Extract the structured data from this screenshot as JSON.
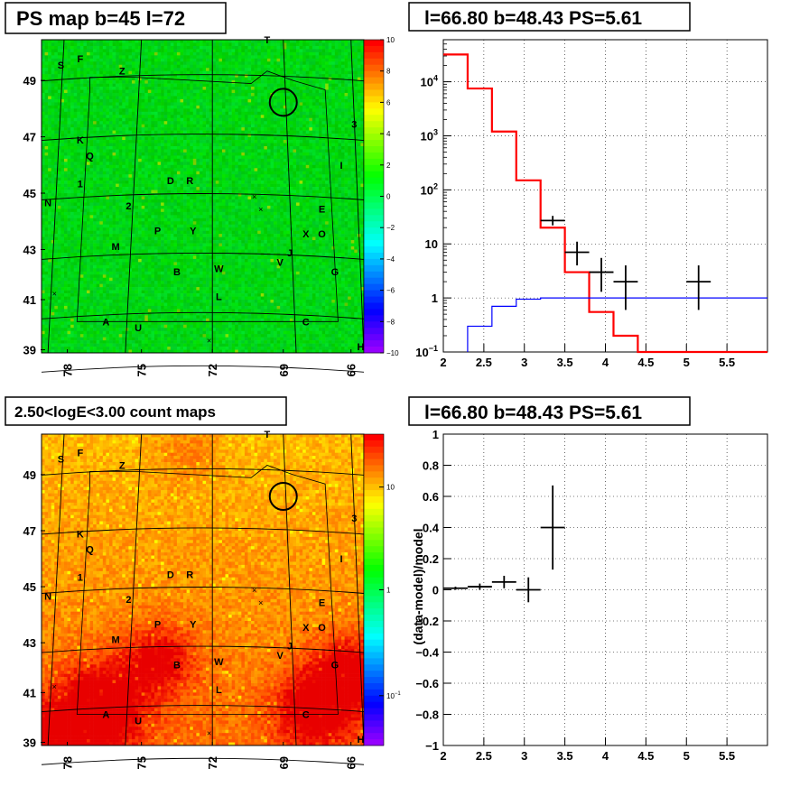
{
  "chart_data": [
    {
      "type": "heatmap",
      "title": "PS map b=45 l=72",
      "yticks": [
        "49",
        "47",
        "45",
        "43",
        "41",
        "39"
      ],
      "xticks": [
        "78",
        "75",
        "72",
        "69",
        "66"
      ],
      "palette_ticks": [
        "10",
        "8",
        "6",
        "4",
        "2",
        "0",
        "−2",
        "−4",
        "−6",
        "−8",
        "−10"
      ],
      "color_range": [
        -10,
        10
      ],
      "source_labels": [
        "T",
        "S",
        "F",
        "Z",
        "3",
        "K",
        "Q",
        "I",
        "1",
        "D",
        "R",
        "N",
        "2",
        "E",
        "P",
        "Y",
        "X",
        "O",
        "M",
        "J",
        "V",
        "B",
        "W",
        "G",
        "L",
        "A",
        "U",
        "C",
        "H"
      ]
    },
    {
      "type": "line",
      "title": "l=66.80 b=48.43 PS=5.61",
      "xlim": [
        2,
        6
      ],
      "ylim": [
        0.1,
        60000
      ],
      "yscale": "log",
      "grid": true,
      "xticks": [
        "2",
        "2.5",
        "3",
        "3.5",
        "4",
        "4.5",
        "5",
        "5.5"
      ],
      "yticks": [
        {
          "base": "10",
          "exp": "4"
        },
        {
          "base": "10",
          "exp": "3"
        },
        {
          "base": "10",
          "exp": "2"
        },
        {
          "base": "10",
          "exp": ""
        },
        {
          "base": "1",
          "exp": ""
        },
        {
          "base": "10",
          "exp": "−1"
        }
      ],
      "series": [
        {
          "color": "#ff0000",
          "style": "step",
          "bins": [
            2.0,
            2.3,
            2.6,
            2.9,
            3.2,
            3.5,
            3.8,
            4.1,
            4.4,
            6.0
          ],
          "values": [
            32000,
            7500,
            1200,
            150,
            20,
            3,
            0.55,
            0.2,
            0.1
          ]
        },
        {
          "color": "#0000ff",
          "style": "step",
          "bins": [
            2.3,
            2.6,
            2.9,
            3.2,
            6.0
          ],
          "values": [
            0.3,
            0.7,
            0.95,
            1.0
          ]
        },
        {
          "color": "#000000",
          "style": "errorbars",
          "points": [
            {
              "x": 3.35,
              "y": 27,
              "xerr": 0.15,
              "ylo": 22,
              "yhi": 33
            },
            {
              "x": 3.65,
              "y": 7,
              "xerr": 0.15,
              "ylo": 4,
              "yhi": 11
            },
            {
              "x": 3.95,
              "y": 3,
              "xerr": 0.15,
              "ylo": 1.3,
              "yhi": 5.5
            },
            {
              "x": 4.25,
              "y": 2,
              "xerr": 0.15,
              "ylo": 0.6,
              "yhi": 4
            },
            {
              "x": 5.15,
              "y": 2,
              "xerr": 0.15,
              "ylo": 0.6,
              "yhi": 4
            }
          ]
        }
      ]
    },
    {
      "type": "heatmap",
      "title": "2.50<logE<3.00 count maps",
      "yticks": [
        "49",
        "47",
        "45",
        "43",
        "41",
        "39"
      ],
      "xticks": [
        "78",
        "75",
        "72",
        "69",
        "66"
      ],
      "palette_ticks": [
        {
          "base": "10",
          "exp": ""
        },
        {
          "base": "1",
          "exp": ""
        },
        {
          "base": "10",
          "exp": "−1"
        }
      ],
      "color_scale": "log",
      "source_labels": [
        "T",
        "S",
        "F",
        "Z",
        "3",
        "K",
        "Q",
        "I",
        "1",
        "D",
        "R",
        "N",
        "2",
        "E",
        "P",
        "Y",
        "X",
        "O",
        "M",
        "J",
        "V",
        "B",
        "W",
        "G",
        "L",
        "A",
        "U",
        "C",
        "H"
      ]
    },
    {
      "type": "scatter",
      "title": "l=66.80 b=48.43 PS=5.61",
      "ylabel": "(data-model)/model",
      "xlim": [
        2,
        6
      ],
      "ylim": [
        -1,
        1
      ],
      "grid": true,
      "xticks": [
        "2",
        "2.5",
        "3",
        "3.5",
        "4",
        "4.5",
        "5",
        "5.5"
      ],
      "yticks": [
        "1",
        "0.8",
        "0.6",
        "0.4",
        "0.2",
        "0",
        "−0.2",
        "−0.4",
        "−0.6",
        "−0.8",
        "−1"
      ],
      "points": [
        {
          "x": 2.15,
          "y": 0.01,
          "xerr": 0.15,
          "yerr": 0.01
        },
        {
          "x": 2.45,
          "y": 0.02,
          "xerr": 0.15,
          "yerr": 0.02
        },
        {
          "x": 2.75,
          "y": 0.05,
          "xerr": 0.15,
          "yerr": 0.04
        },
        {
          "x": 3.05,
          "y": 0.0,
          "xerr": 0.15,
          "yerr": 0.08
        },
        {
          "x": 3.35,
          "y": 0.4,
          "xerr": 0.15,
          "yerr": 0.27
        }
      ]
    }
  ]
}
